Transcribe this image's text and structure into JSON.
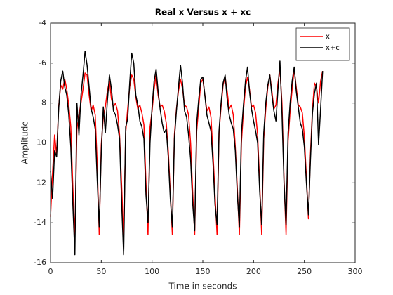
{
  "chart_data": {
    "type": "line",
    "title": "Real x Versus x + xc",
    "x_label": "Time in seconds",
    "y_label": "Amplitude",
    "x": [
      0,
      2,
      4,
      6,
      8,
      10,
      12,
      14,
      16,
      18,
      20,
      22,
      24,
      26,
      28,
      30,
      32,
      34,
      36,
      38,
      40,
      42,
      44,
      46,
      48,
      50,
      52,
      54,
      56,
      58,
      60,
      62,
      64,
      66,
      68,
      70,
      72,
      74,
      76,
      78,
      80,
      82,
      84,
      86,
      88,
      90,
      92,
      94,
      96,
      98,
      100,
      102,
      104,
      106,
      108,
      110,
      112,
      114,
      116,
      118,
      120,
      122,
      124,
      126,
      128,
      130,
      132,
      134,
      136,
      138,
      140,
      142,
      144,
      146,
      148,
      150,
      152,
      154,
      156,
      158,
      160,
      162,
      164,
      166,
      168,
      170,
      172,
      174,
      176,
      178,
      180,
      182,
      184,
      186,
      188,
      190,
      192,
      194,
      196,
      198,
      200,
      202,
      204,
      206,
      208,
      210,
      212,
      214,
      216,
      218,
      220,
      222,
      224,
      226,
      228,
      230,
      232,
      234,
      236,
      238,
      240,
      242,
      244,
      246,
      248,
      250,
      252,
      254,
      256,
      258,
      260,
      262,
      264,
      266,
      268
    ],
    "series": [
      {
        "name": "x",
        "color": "#ff0000",
        "values": [
          -13.7,
          -11.5,
          -9.6,
          -10.6,
          -8.2,
          -7.1,
          -7.3,
          -6.8,
          -7.3,
          -8.1,
          -9.2,
          -12.2,
          -14.7,
          -9.3,
          -8.6,
          -8.0,
          -7.3,
          -6.5,
          -6.6,
          -7.6,
          -8.4,
          -8.1,
          -8.6,
          -11.0,
          -14.6,
          -10.1,
          -8.7,
          -8.2,
          -7.4,
          -6.9,
          -7.8,
          -8.2,
          -8.0,
          -8.4,
          -9.6,
          -12.1,
          -14.7,
          -9.5,
          -8.3,
          -7.2,
          -6.6,
          -6.8,
          -7.7,
          -8.3,
          -8.1,
          -8.5,
          -9.1,
          -12.0,
          -14.6,
          -9.2,
          -8.4,
          -7.3,
          -6.6,
          -7.6,
          -8.2,
          -8.1,
          -8.4,
          -9.0,
          -10.4,
          -12.5,
          -14.6,
          -9.6,
          -8.3,
          -7.4,
          -6.8,
          -7.3,
          -8.1,
          -8.2,
          -8.6,
          -10.0,
          -12.4,
          -14.6,
          -9.4,
          -8.2,
          -7.0,
          -6.8,
          -7.6,
          -8.4,
          -8.2,
          -8.7,
          -10.5,
          -12.6,
          -14.6,
          -9.5,
          -8.2,
          -7.1,
          -6.7,
          -7.4,
          -8.3,
          -8.1,
          -8.6,
          -10.2,
          -12.3,
          -14.6,
          -10.0,
          -8.4,
          -7.2,
          -6.7,
          -7.3,
          -8.2,
          -8.1,
          -8.5,
          -9.6,
          -12.0,
          -14.6,
          -9.8,
          -8.3,
          -7.2,
          -6.6,
          -7.4,
          -8.3,
          -8.1,
          -7.0,
          -6.3,
          -8.0,
          -11.8,
          -14.6,
          -9.9,
          -8.4,
          -7.3,
          -6.3,
          -7.2,
          -8.1,
          -8.2,
          -8.5,
          -9.7,
          -11.7,
          -13.8,
          -10.6,
          -8.3,
          -7.0,
          -7.2,
          -8.0,
          -6.9,
          -6.4
        ]
      },
      {
        "name": "x+c",
        "color": "#000000",
        "values": [
          -11.4,
          -12.8,
          -10.4,
          -10.7,
          -8.3,
          -6.9,
          -6.4,
          -7.2,
          -7.6,
          -8.6,
          -10.2,
          -13.1,
          -15.6,
          -8.0,
          -9.6,
          -7.6,
          -6.6,
          -5.4,
          -6.1,
          -7.2,
          -8.3,
          -8.7,
          -9.3,
          -11.8,
          -14.2,
          -10.5,
          -8.2,
          -9.5,
          -7.9,
          -6.6,
          -7.3,
          -8.4,
          -8.6,
          -9.1,
          -9.8,
          -13.0,
          -15.6,
          -9.2,
          -8.8,
          -7.0,
          -5.5,
          -6.0,
          -7.6,
          -8.1,
          -8.9,
          -9.2,
          -9.8,
          -12.6,
          -14.0,
          -10.0,
          -8.2,
          -6.9,
          -6.3,
          -7.4,
          -8.3,
          -9.0,
          -9.5,
          -9.3,
          -10.7,
          -12.8,
          -14.2,
          -9.8,
          -8.4,
          -7.2,
          -6.1,
          -7.0,
          -8.4,
          -8.7,
          -9.6,
          -10.8,
          -13.0,
          -14.4,
          -9.0,
          -7.8,
          -6.8,
          -6.7,
          -7.6,
          -8.6,
          -9.0,
          -9.4,
          -11.0,
          -13.1,
          -14.1,
          -9.4,
          -8.0,
          -7.0,
          -6.6,
          -7.8,
          -8.6,
          -9.0,
          -9.3,
          -10.4,
          -12.6,
          -14.2,
          -9.5,
          -8.1,
          -6.9,
          -6.2,
          -7.4,
          -8.3,
          -8.9,
          -9.4,
          -10.0,
          -12.4,
          -14.1,
          -9.5,
          -8.0,
          -7.1,
          -6.6,
          -7.6,
          -8.4,
          -8.9,
          -7.3,
          -5.9,
          -8.5,
          -12.0,
          -14.1,
          -9.5,
          -8.0,
          -6.9,
          -6.2,
          -7.4,
          -8.2,
          -9.0,
          -9.3,
          -10.2,
          -12.0,
          -13.6,
          -10.9,
          -8.5,
          -7.5,
          -7.0,
          -10.1,
          -8.3,
          -6.4
        ]
      }
    ],
    "xlim": [
      0,
      300
    ],
    "xticks": [
      0,
      50,
      100,
      150,
      200,
      250,
      300
    ],
    "ylim": [
      -16,
      -4
    ],
    "yticks": [
      -16,
      -14,
      -12,
      -10,
      -8,
      -6,
      -4
    ],
    "legend": "northeast"
  }
}
